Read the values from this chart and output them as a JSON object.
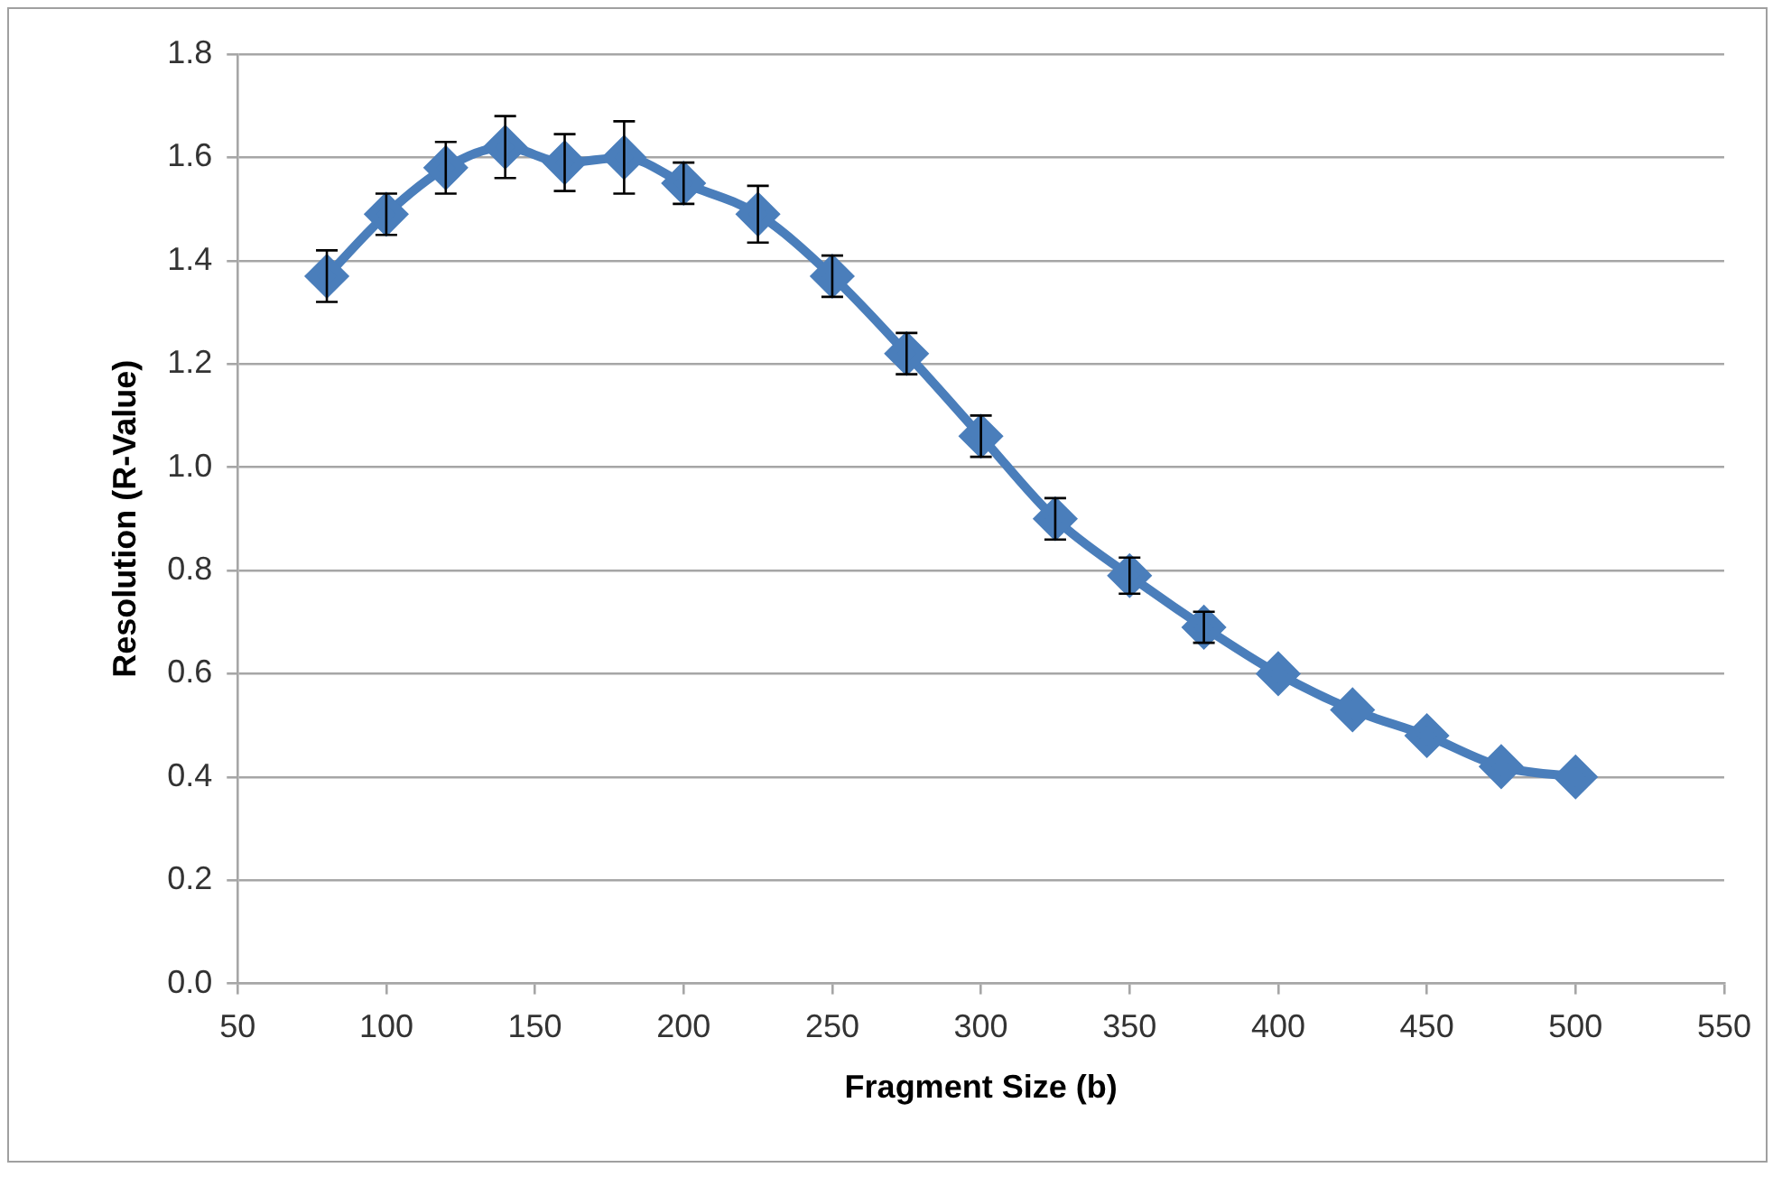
{
  "chart_data": {
    "type": "line",
    "xlabel": "Fragment Size (b)",
    "ylabel": "Resolution (R-Value)",
    "x": [
      80,
      100,
      120,
      140,
      160,
      180,
      200,
      225,
      250,
      275,
      300,
      325,
      350,
      375,
      400,
      425,
      450,
      475,
      500
    ],
    "series": [
      {
        "color": "#4a7ebb",
        "values": [
          1.37,
          1.49,
          1.58,
          1.62,
          1.59,
          1.6,
          1.55,
          1.49,
          1.37,
          1.22,
          1.06,
          0.9,
          0.79,
          0.69,
          0.6,
          0.53,
          0.48,
          0.42,
          0.4
        ],
        "errors": [
          0.05,
          0.04,
          0.05,
          0.06,
          0.055,
          0.07,
          0.04,
          0.055,
          0.04,
          0.04,
          0.04,
          0.04,
          0.035,
          0.03,
          null,
          null,
          null,
          null,
          null
        ]
      }
    ],
    "xlim": [
      50,
      550
    ],
    "xticks": [
      50,
      100,
      150,
      200,
      250,
      300,
      350,
      400,
      450,
      500,
      550
    ],
    "ylim": [
      0,
      1.8
    ],
    "yticks": [
      {
        "value": 0,
        "label": "0.0"
      },
      {
        "value": 0.2,
        "label": "0.2"
      },
      {
        "value": 0.4,
        "label": "0.4"
      },
      {
        "value": 0.6,
        "label": "0.6"
      },
      {
        "value": 0.8,
        "label": "0.8"
      },
      {
        "value": 1,
        "label": "1.0"
      },
      {
        "value": 1.2,
        "label": "1.2"
      },
      {
        "value": 1.4,
        "label": "1.4"
      },
      {
        "value": 1.6,
        "label": "1.6"
      },
      {
        "value": 1.8,
        "label": "1.8"
      }
    ],
    "grid": "y",
    "legend": false,
    "marker": "diamond"
  }
}
